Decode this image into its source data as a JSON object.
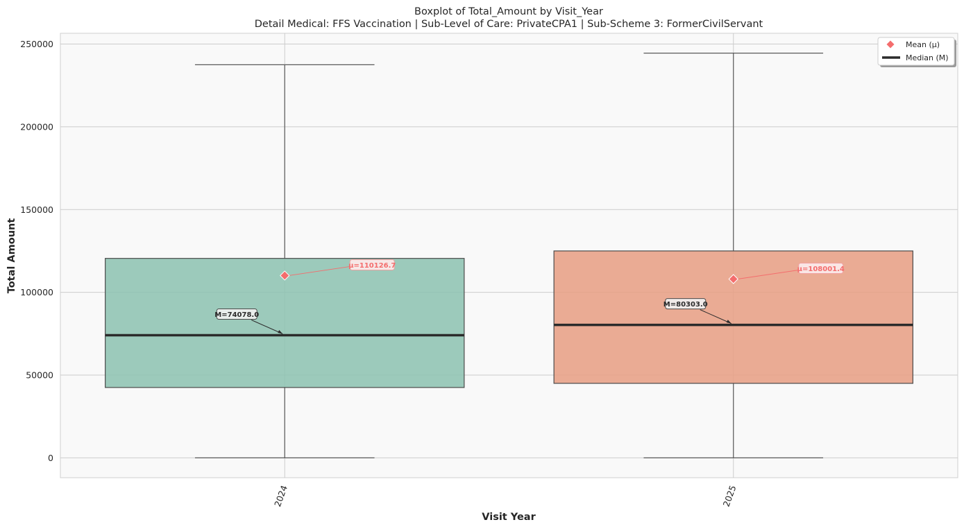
{
  "chart_data": {
    "type": "box",
    "title": "Boxplot of Total_Amount by Visit_Year",
    "subtitle": "Detail Medical: FFS Vaccination | Sub-Level of Care: PrivateCPA1 | Sub-Scheme 3: FormerCivilServant",
    "xlabel": "Visit Year",
    "ylabel": "Total Amount",
    "ylim": [
      -12000,
      256500
    ],
    "yticks": [
      0,
      50000,
      100000,
      150000,
      200000,
      250000
    ],
    "grid": true,
    "legend_position": "top-right",
    "legend": [
      {
        "label": "Mean (μ)",
        "marker": "diamond",
        "color": "#f46d6d"
      },
      {
        "label": "Median (M)",
        "marker": "line",
        "color": "#2b2b2b"
      }
    ],
    "categories": [
      "2024",
      "2025"
    ],
    "boxes": [
      {
        "category": "2024",
        "whisker_low": 0,
        "q1": 42500,
        "median": 74078.0,
        "q3": 120500,
        "whisker_high": 237500,
        "mean": 110126.7,
        "color": "#8cc2b0",
        "median_label": "M=74078.0",
        "mean_label": "μ=110126.7"
      },
      {
        "category": "2025",
        "whisker_low": 0,
        "q1": 45000,
        "median": 80303.0,
        "q3": 125000,
        "whisker_high": 244500,
        "mean": 108001.4,
        "color": "#e89e82",
        "median_label": "M=80303.0",
        "mean_label": "μ=108001.4"
      }
    ],
    "colors": {
      "background": "#f9f9f9",
      "grid": "#cccccc",
      "mean_marker": "#f46d6d",
      "median_line": "#2b2b2b",
      "whisker": "#5a5a5a"
    }
  }
}
